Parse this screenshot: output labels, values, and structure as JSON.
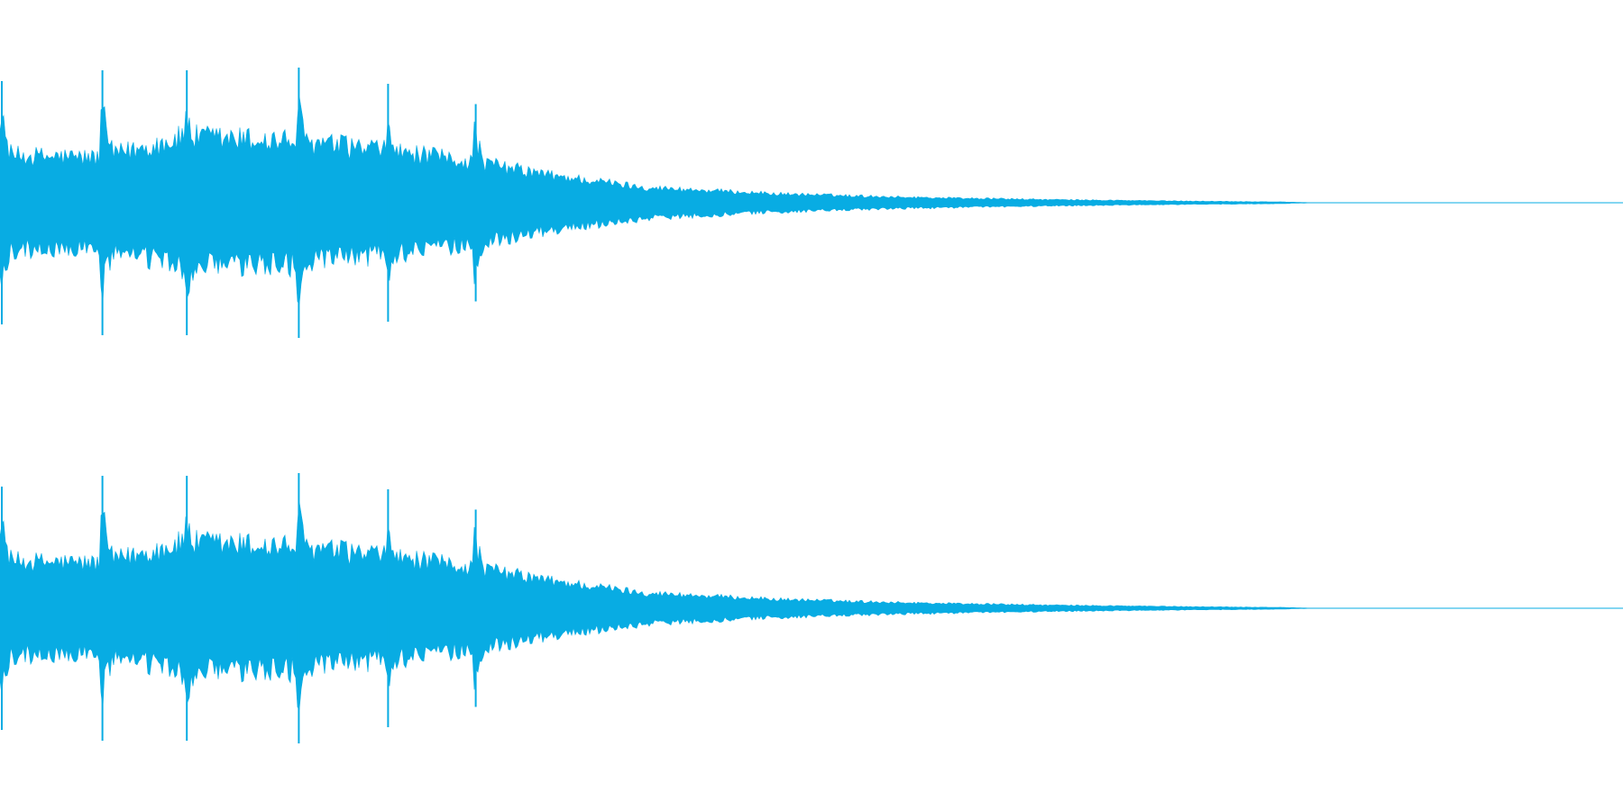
{
  "waveform": {
    "color": "#08acE3",
    "background": "#ffffff",
    "channels": [
      {
        "name": "channel-1",
        "envelope_peaks": [
          {
            "t": 0.0,
            "amp": 0.9
          },
          {
            "t": 0.062,
            "amp": 0.98
          },
          {
            "t": 0.114,
            "amp": 0.98
          },
          {
            "t": 0.183,
            "amp": 1.0
          },
          {
            "t": 0.238,
            "amp": 0.88
          },
          {
            "t": 0.292,
            "amp": 0.73
          }
        ],
        "base_level": [
          {
            "t": 0.0,
            "amp": 0.35
          },
          {
            "t": 0.062,
            "amp": 0.33
          },
          {
            "t": 0.114,
            "amp": 0.48
          },
          {
            "t": 0.183,
            "amp": 0.45
          },
          {
            "t": 0.238,
            "amp": 0.38
          },
          {
            "t": 0.292,
            "amp": 0.3
          },
          {
            "t": 0.34,
            "amp": 0.2
          },
          {
            "t": 0.4,
            "amp": 0.11
          },
          {
            "t": 0.48,
            "amp": 0.065
          },
          {
            "t": 0.56,
            "amp": 0.04
          },
          {
            "t": 0.65,
            "amp": 0.022
          },
          {
            "t": 0.73,
            "amp": 0.012
          },
          {
            "t": 0.79,
            "amp": 0.006
          },
          {
            "t": 0.81,
            "amp": 0.0
          }
        ]
      },
      {
        "name": "channel-2",
        "envelope_peaks": [
          {
            "t": 0.0,
            "amp": 0.9
          },
          {
            "t": 0.062,
            "amp": 0.98
          },
          {
            "t": 0.114,
            "amp": 0.98
          },
          {
            "t": 0.183,
            "amp": 1.0
          },
          {
            "t": 0.238,
            "amp": 0.88
          },
          {
            "t": 0.292,
            "amp": 0.73
          }
        ],
        "base_level": [
          {
            "t": 0.0,
            "amp": 0.35
          },
          {
            "t": 0.062,
            "amp": 0.33
          },
          {
            "t": 0.114,
            "amp": 0.48
          },
          {
            "t": 0.183,
            "amp": 0.45
          },
          {
            "t": 0.238,
            "amp": 0.38
          },
          {
            "t": 0.292,
            "amp": 0.3
          },
          {
            "t": 0.34,
            "amp": 0.2
          },
          {
            "t": 0.4,
            "amp": 0.11
          },
          {
            "t": 0.48,
            "amp": 0.065
          },
          {
            "t": 0.56,
            "amp": 0.04
          },
          {
            "t": 0.65,
            "amp": 0.022
          },
          {
            "t": 0.73,
            "amp": 0.012
          },
          {
            "t": 0.79,
            "amp": 0.006
          },
          {
            "t": 0.81,
            "amp": 0.0
          }
        ]
      }
    ]
  }
}
